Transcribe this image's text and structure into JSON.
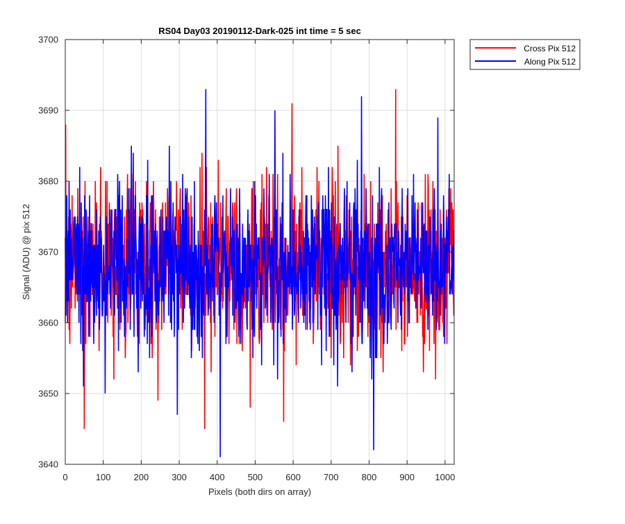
{
  "chart_data": {
    "type": "line",
    "title": "RS04 Day03 20190112-Dark-025 int time = 5 sec",
    "xlabel": "Pixels (both dirs on array)",
    "ylabel": "Signal (ADU) @ pix 512",
    "xlim": [
      0,
      1024
    ],
    "ylim": [
      3640,
      3700
    ],
    "x_ticks": [
      0,
      100,
      200,
      300,
      400,
      500,
      600,
      700,
      800,
      900,
      1000
    ],
    "y_ticks": [
      3640,
      3650,
      3660,
      3670,
      3680,
      3690,
      3700
    ],
    "x_tick_labels": [
      "0",
      "100",
      "200",
      "300",
      "400",
      "500",
      "600",
      "700",
      "800",
      "900",
      "1000"
    ],
    "y_tick_labels": [
      "3640",
      "3650",
      "3660",
      "3670",
      "3680",
      "3690",
      "3700"
    ],
    "grid": true,
    "legend_position": "outside-top-right",
    "series": [
      {
        "name": "Cross Pix 512",
        "color": "#ff0000",
        "summary": {
          "n_points": 1024,
          "mean": 3668,
          "min": 3645,
          "max": 3693,
          "noise_sigma_approx": 6
        },
        "peaks": [
          {
            "x": 1,
            "y": 3688
          },
          {
            "x": 50,
            "y": 3645
          },
          {
            "x": 367,
            "y": 3645
          },
          {
            "x": 575,
            "y": 3646
          },
          {
            "x": 597,
            "y": 3691
          },
          {
            "x": 870,
            "y": 3693
          }
        ]
      },
      {
        "name": "Along Pix 512",
        "color": "#0000ff",
        "summary": {
          "n_points": 1024,
          "mean": 3668,
          "min": 3641,
          "max": 3693,
          "noise_sigma_approx": 6
        },
        "peaks": [
          {
            "x": 370,
            "y": 3693
          },
          {
            "x": 408,
            "y": 3641
          },
          {
            "x": 295,
            "y": 3647
          },
          {
            "x": 780,
            "y": 3692
          },
          {
            "x": 812,
            "y": 3642
          },
          {
            "x": 552,
            "y": 3690
          }
        ]
      }
    ]
  }
}
